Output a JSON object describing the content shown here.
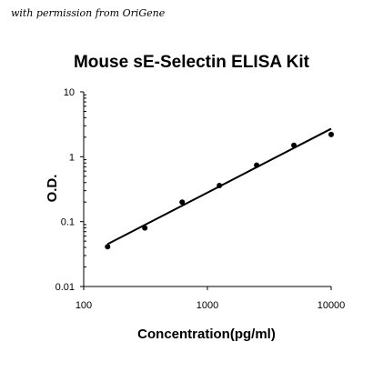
{
  "credit": "with permission from OriGene",
  "chart_data": {
    "type": "scatter",
    "title": "Mouse sE-Selectin ELISA Kit",
    "xlabel": "Concentration(pg/ml)",
    "ylabel": "O.D.",
    "x_scale": "log",
    "y_scale": "log",
    "xlim": [
      100,
      10000
    ],
    "ylim": [
      0.01,
      10
    ],
    "x_ticks": [
      "100",
      "1000",
      "10000"
    ],
    "y_ticks": [
      "0.01",
      "0.1",
      "1",
      "10"
    ],
    "grid": false,
    "legend": "none",
    "points": [
      {
        "x": 156,
        "y": 0.041
      },
      {
        "x": 312,
        "y": 0.08
      },
      {
        "x": 625,
        "y": 0.2
      },
      {
        "x": 1250,
        "y": 0.36
      },
      {
        "x": 2500,
        "y": 0.74
      },
      {
        "x": 5000,
        "y": 1.5
      },
      {
        "x": 10000,
        "y": 2.2
      }
    ],
    "fit_line": [
      {
        "x": 156,
        "y": 0.045
      },
      {
        "x": 10000,
        "y": 2.7
      }
    ]
  }
}
